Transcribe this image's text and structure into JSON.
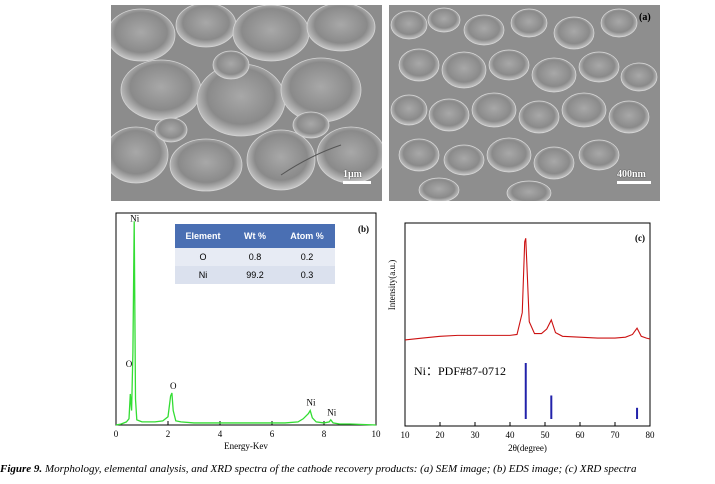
{
  "figure": {
    "caption_bold": "Figure 9.",
    "caption_text": " Morphology, elemental analysis, and XRD spectra of the cathode recovery products: (a) SEM image; (b) EDS image; (c) XRD spectra"
  },
  "sem": {
    "left_scale_label": "1μm",
    "right_scale_label": "400nm",
    "panel_tag": "(a)"
  },
  "eds": {
    "panel_tag": "(b)",
    "table": {
      "headers": [
        "Element",
        "Wt %",
        "Atom %"
      ],
      "rows": [
        [
          "O",
          "0.8",
          "0.2"
        ],
        [
          "Ni",
          "99.2",
          "0.3"
        ]
      ]
    }
  },
  "xrd": {
    "panel_tag": "(c)",
    "reference_label": "Ni：PDF#87-0712"
  },
  "chart_data": [
    {
      "type": "line",
      "title": "",
      "xlabel": "Energy-Kev",
      "ylabel": "",
      "xlim": [
        0,
        10
      ],
      "x_ticks": [
        "0",
        "2",
        "4",
        "6",
        "8",
        "10"
      ],
      "series": [
        {
          "name": "EDS spectrum",
          "color": "#33dd33",
          "x": [
            0,
            0.2,
            0.4,
            0.5,
            0.55,
            0.6,
            0.65,
            0.7,
            0.75,
            0.8,
            0.9,
            1.0,
            1.2,
            1.5,
            1.8,
            2.0,
            2.1,
            2.15,
            2.2,
            2.3,
            2.5,
            3.0,
            4.0,
            5.0,
            6.0,
            6.5,
            7.0,
            7.2,
            7.4,
            7.47,
            7.55,
            7.7,
            8.0,
            8.2,
            8.26,
            8.35,
            8.6,
            9.0,
            10.0
          ],
          "y": [
            0,
            1,
            3,
            6,
            30,
            14,
            70,
            197,
            25,
            5,
            4,
            3,
            3,
            3,
            4,
            8,
            28,
            31,
            14,
            4,
            3,
            2,
            2,
            2,
            2,
            2,
            3,
            6,
            11,
            14,
            7,
            3,
            2,
            3,
            5,
            2,
            1,
            1,
            0
          ]
        }
      ],
      "annotations": [
        {
          "text": "Ni",
          "x": 0.72,
          "y": 197
        },
        {
          "text": "O",
          "x": 0.5,
          "y": 56
        },
        {
          "text": "O",
          "x": 2.2,
          "y": 35
        },
        {
          "text": "Ni",
          "x": 7.5,
          "y": 19
        },
        {
          "text": "Ni",
          "x": 8.3,
          "y": 9
        }
      ]
    },
    {
      "type": "line",
      "title": "",
      "xlabel": "2θ(degree)",
      "ylabel": "Intensity(a.u.)",
      "xlim": [
        10,
        80
      ],
      "x_ticks": [
        "10",
        "20",
        "30",
        "40",
        "50",
        "60",
        "70",
        "80"
      ],
      "series": [
        {
          "name": "XRD pattern",
          "color": "#cc1111",
          "x": [
            10,
            15,
            20,
            25,
            30,
            35,
            40,
            42,
            43.5,
            44.2,
            44.5,
            44.8,
            45.5,
            47,
            49,
            50.5,
            51.8,
            53,
            55,
            60,
            65,
            70,
            73,
            75,
            76.3,
            77.5,
            79,
            80
          ],
          "y": [
            10,
            12,
            14,
            15,
            15,
            15,
            15,
            16,
            40,
            118,
            122,
            95,
            30,
            17,
            17,
            22,
            32,
            18,
            14,
            13,
            12,
            12,
            13,
            16,
            23,
            14,
            12,
            11
          ]
        }
      ],
      "reference_lines": {
        "label": "Ni：PDF#87-0712",
        "color": "#2222aa",
        "positions": [
          44.5,
          51.8,
          76.3
        ],
        "relative_heights": [
          1.0,
          0.42,
          0.2
        ]
      }
    }
  ]
}
